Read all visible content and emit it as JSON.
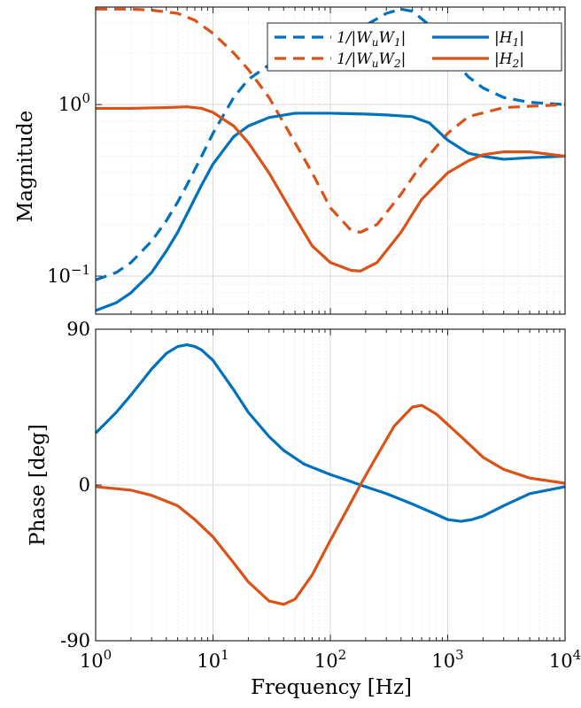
{
  "colors": {
    "blue": "#0072BD",
    "orange": "#D95319",
    "grid_major": "#d9d9d9",
    "grid_minor": "#ececec"
  },
  "chart_data": [
    {
      "type": "line",
      "panel": "magnitude",
      "xlabel": "",
      "ylabel": "Magnitude",
      "xscale": "log",
      "yscale": "log",
      "xlim": [
        1,
        10000
      ],
      "ylim": [
        0.06,
        3.7
      ],
      "yticks": [
        {
          "value": 0.1,
          "base": "10",
          "exp": "−1"
        },
        {
          "value": 1,
          "base": "10",
          "exp": "0"
        }
      ],
      "grid": true,
      "legend": {
        "placement": "top-right",
        "entries": [
          {
            "label": "1/|W",
            "sub": "u",
            "label2": "W",
            "sub2": "1",
            "label3": "|",
            "series": 0
          },
          {
            "label": "|H",
            "sub": "1",
            "label2": "|",
            "sub2": "",
            "label3": "",
            "series": 2
          },
          {
            "label": "1/|W",
            "sub": "u",
            "label2": "W",
            "sub2": "2",
            "label3": "|",
            "series": 1
          },
          {
            "label": "|H",
            "sub": "2",
            "label2": "|",
            "sub2": "",
            "label3": "",
            "series": 3
          }
        ]
      },
      "series": [
        {
          "style": "dashed",
          "color": "#0072BD",
          "x": [
            1,
            1.5,
            2,
            3,
            4,
            5,
            6,
            8,
            10,
            15,
            20,
            30,
            50,
            100,
            200,
            300,
            400,
            500,
            700,
            1000,
            1500,
            2000,
            3000,
            5000,
            10000
          ],
          "y": [
            0.095,
            0.105,
            0.12,
            0.16,
            0.21,
            0.27,
            0.34,
            0.5,
            0.68,
            1.1,
            1.4,
            1.7,
            1.95,
            2.35,
            2.9,
            3.4,
            3.6,
            3.5,
            2.9,
            2.0,
            1.45,
            1.25,
            1.1,
            1.03,
            1.0
          ]
        },
        {
          "style": "dashed",
          "color": "#D95319",
          "x": [
            1,
            2,
            3,
            5,
            7,
            10,
            15,
            20,
            30,
            50,
            70,
            100,
            150,
            180,
            250,
            400,
            600,
            1000,
            1500,
            3000,
            10000
          ],
          "y": [
            3.6,
            3.6,
            3.55,
            3.4,
            3.1,
            2.6,
            2.0,
            1.6,
            1.1,
            0.6,
            0.4,
            0.25,
            0.185,
            0.18,
            0.2,
            0.3,
            0.45,
            0.68,
            0.85,
            0.96,
            1.0
          ]
        },
        {
          "style": "solid",
          "color": "#0072BD",
          "x": [
            1,
            1.5,
            2,
            3,
            4,
            5,
            6,
            8,
            10,
            15,
            20,
            30,
            50,
            100,
            200,
            300,
            500,
            700,
            1000,
            1500,
            2000,
            3000,
            5000,
            10000
          ],
          "y": [
            0.063,
            0.07,
            0.08,
            0.105,
            0.14,
            0.18,
            0.23,
            0.34,
            0.45,
            0.65,
            0.75,
            0.84,
            0.89,
            0.89,
            0.88,
            0.87,
            0.85,
            0.78,
            0.62,
            0.52,
            0.5,
            0.48,
            0.49,
            0.5
          ]
        },
        {
          "style": "solid",
          "color": "#D95319",
          "x": [
            1,
            2,
            4,
            6,
            8,
            10,
            15,
            20,
            30,
            50,
            70,
            100,
            150,
            180,
            250,
            400,
            600,
            1000,
            1500,
            2000,
            3000,
            5000,
            10000
          ],
          "y": [
            0.95,
            0.95,
            0.96,
            0.97,
            0.95,
            0.9,
            0.75,
            0.6,
            0.4,
            0.22,
            0.15,
            0.12,
            0.108,
            0.107,
            0.12,
            0.18,
            0.28,
            0.4,
            0.47,
            0.51,
            0.53,
            0.53,
            0.5
          ]
        }
      ]
    },
    {
      "type": "line",
      "panel": "phase",
      "xlabel": "Frequency [Hz]",
      "ylabel": "Phase [deg]",
      "xscale": "log",
      "xlim": [
        1,
        10000
      ],
      "ylim": [
        -90,
        90
      ],
      "yticks": [
        {
          "value": -90,
          "label": "-90"
        },
        {
          "value": 0,
          "label": "0"
        },
        {
          "value": 90,
          "label": "90"
        }
      ],
      "xticks": [
        {
          "value": 1,
          "base": "10",
          "exp": "0"
        },
        {
          "value": 10,
          "base": "10",
          "exp": "1"
        },
        {
          "value": 100,
          "base": "10",
          "exp": "2"
        },
        {
          "value": 1000,
          "base": "10",
          "exp": "3"
        },
        {
          "value": 10000,
          "base": "10",
          "exp": "4"
        }
      ],
      "grid": true,
      "series": [
        {
          "style": "solid",
          "color": "#0072BD",
          "x": [
            1,
            1.5,
            2,
            3,
            4,
            5,
            6,
            7,
            8,
            10,
            15,
            20,
            30,
            40,
            60,
            100,
            150,
            180,
            300,
            500,
            800,
            1000,
            1300,
            1600,
            2000,
            3000,
            5000,
            10000
          ],
          "y": [
            30,
            42,
            52,
            67,
            76,
            80,
            81,
            80,
            78,
            72,
            55,
            42,
            28,
            20,
            12,
            6,
            2,
            0,
            -5,
            -11,
            -17,
            -20,
            -21,
            -20,
            -18,
            -12,
            -5,
            -1
          ]
        },
        {
          "style": "solid",
          "color": "#D95319",
          "x": [
            1,
            2,
            3,
            5,
            7,
            10,
            15,
            20,
            30,
            40,
            50,
            70,
            100,
            150,
            180,
            250,
            350,
            500,
            600,
            800,
            1000,
            1500,
            2000,
            3000,
            5000,
            10000
          ],
          "y": [
            -1,
            -3,
            -6,
            -12,
            -20,
            -30,
            -45,
            -56,
            -67,
            -69,
            -66,
            -52,
            -32,
            -10,
            0,
            17,
            34,
            45,
            46,
            41,
            35,
            24,
            16,
            9,
            4,
            1
          ]
        }
      ]
    }
  ]
}
